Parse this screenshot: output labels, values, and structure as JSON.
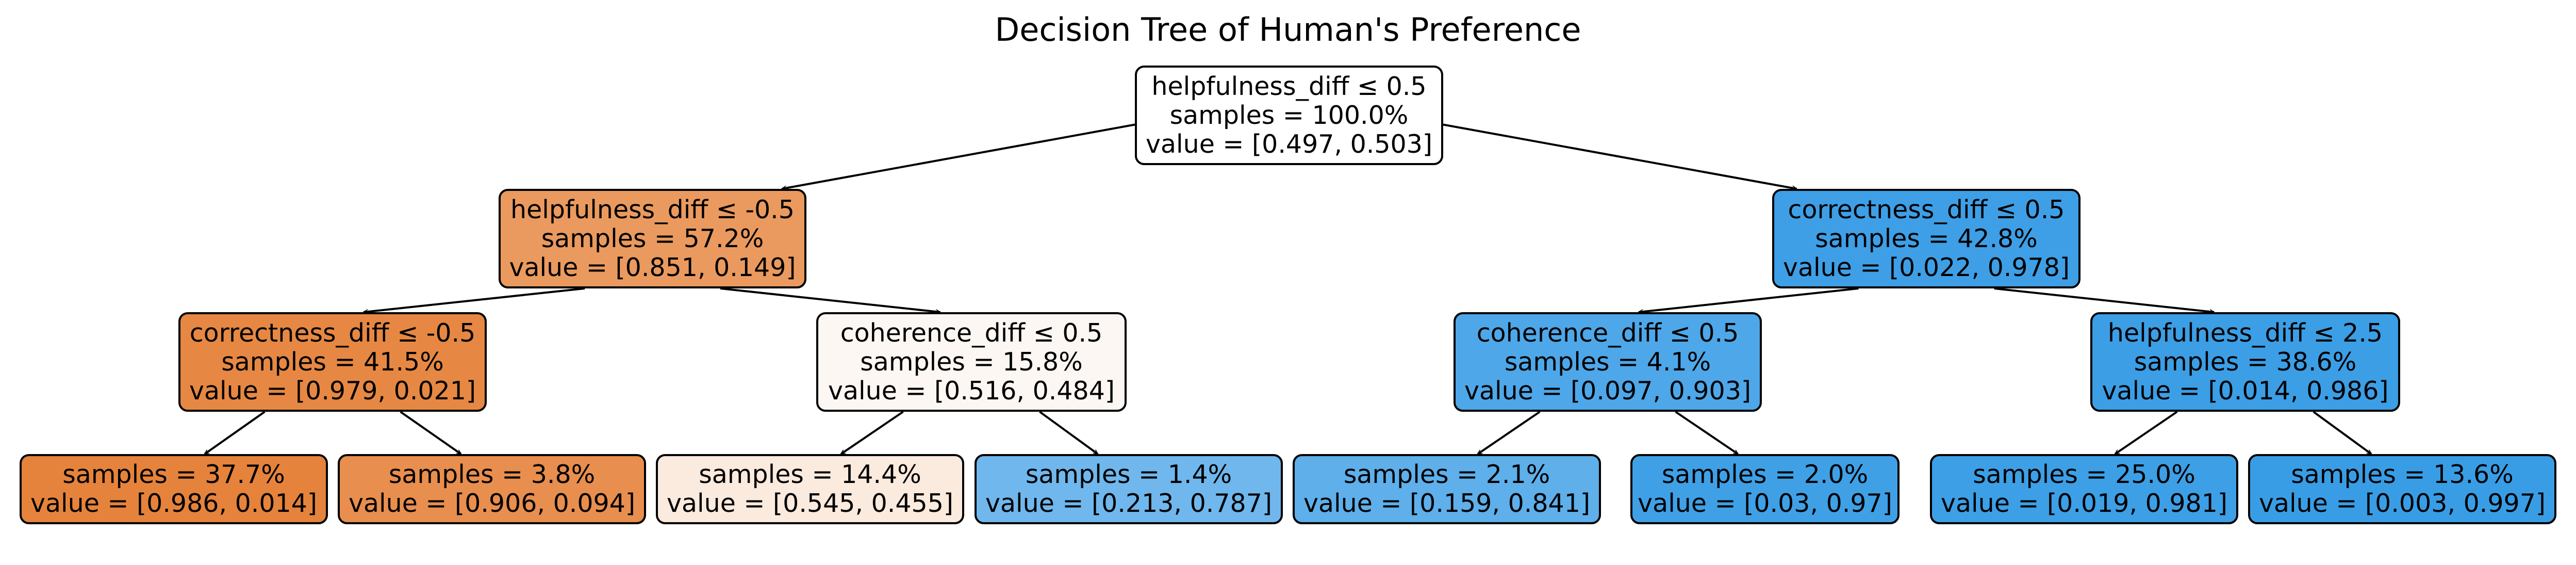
{
  "title": "Decision Tree of Human's Preference",
  "nodes": {
    "root": {
      "split": "helpfulness_diff ≤ 0.5",
      "samples": "samples = 100.0%",
      "value": "value = [0.497, 0.503]",
      "color": "#ffffff"
    },
    "l": {
      "split": "helpfulness_diff ≤ -0.5",
      "samples": "samples = 57.2%",
      "value": "value = [0.851, 0.149]",
      "color": "#ea9a5f"
    },
    "r": {
      "split": "correctness_diff ≤ 0.5",
      "samples": "samples = 42.8%",
      "value": "value = [0.022, 0.978]",
      "color": "#3e9fe6"
    },
    "ll": {
      "split": "correctness_diff ≤ -0.5",
      "samples": "samples = 41.5%",
      "value": "value = [0.979, 0.021]",
      "color": "#e68843"
    },
    "lr": {
      "split": "coherence_diff ≤ 0.5",
      "samples": "samples = 15.8%",
      "value": "value = [0.516, 0.484]",
      "color": "#fdf7f3"
    },
    "rl": {
      "split": "coherence_diff ≤ 0.5",
      "samples": "samples = 4.1%",
      "value": "value = [0.097, 0.903]",
      "color": "#4ea7e8"
    },
    "rr": {
      "split": "helpfulness_diff ≤ 2.5",
      "samples": "samples = 38.6%",
      "value": "value = [0.014, 0.986]",
      "color": "#3c9ee5"
    },
    "lll": {
      "samples": "samples = 37.7%",
      "value": "value = [0.986, 0.014]",
      "color": "#e5833c"
    },
    "llr": {
      "samples": "samples = 3.8%",
      "value": "value = [0.906, 0.094]",
      "color": "#e88e4e"
    },
    "lrl": {
      "samples": "samples = 14.4%",
      "value": "value = [0.545, 0.455]",
      "color": "#fbeade"
    },
    "lrr": {
      "samples": "samples = 1.4%",
      "value": "value = [0.213, 0.787]",
      "color": "#6fb7ec"
    },
    "rll": {
      "samples": "samples = 2.1%",
      "value": "value = [0.159, 0.841]",
      "color": "#5eafea"
    },
    "rlr": {
      "samples": "samples = 2.0%",
      "value": "value = [0.03, 0.97]",
      "color": "#3fa0e6"
    },
    "rrl": {
      "samples": "samples = 25.0%",
      "value": "value = [0.019, 0.981]",
      "color": "#3d9fe6"
    },
    "rrr": {
      "samples": "samples = 13.6%",
      "value": "value = [0.003, 0.997]",
      "color": "#399de5"
    }
  }
}
